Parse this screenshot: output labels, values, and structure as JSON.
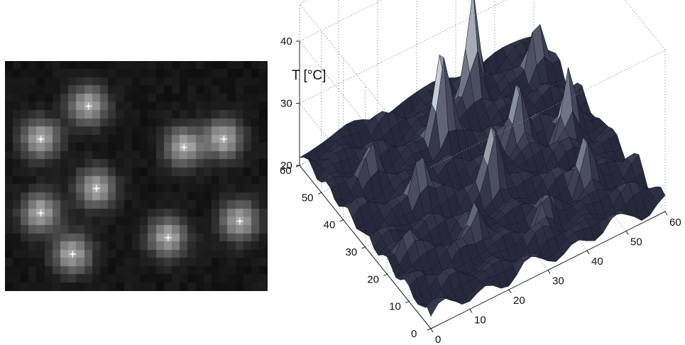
{
  "chart_data": [
    {
      "type": "heatmap",
      "colormap": "grayscale",
      "grid_rows": 28,
      "grid_cols": 33,
      "markers": "white cross",
      "spots": [
        {
          "row": 5,
          "col": 10
        },
        {
          "row": 9,
          "col": 4
        },
        {
          "row": 10,
          "col": 22
        },
        {
          "row": 9,
          "col": 27
        },
        {
          "row": 15,
          "col": 11
        },
        {
          "row": 18,
          "col": 4
        },
        {
          "row": 21,
          "col": 20
        },
        {
          "row": 23,
          "col": 8
        },
        {
          "row": 19,
          "col": 29
        }
      ]
    },
    {
      "type": "surface",
      "zlabel": "T [°C]",
      "xticks": [
        "0",
        "10",
        "20",
        "30",
        "40",
        "50",
        "60"
      ],
      "yticks": [
        "0",
        "10",
        "20",
        "30",
        "40",
        "50",
        "60"
      ],
      "zticks": [
        "20",
        "30",
        "40"
      ],
      "xlim": [
        0,
        60
      ],
      "ylim": [
        0,
        60
      ],
      "zlim": [
        20,
        40
      ],
      "baseline_temperature": 22,
      "grid": true,
      "colors": {
        "low": "#202235",
        "high": "#d8e6ee"
      },
      "peaks": [
        {
          "x": 15,
          "y": 32,
          "t": 30
        },
        {
          "x": 28,
          "y": 45,
          "t": 38
        },
        {
          "x": 40,
          "y": 52,
          "t": 40
        },
        {
          "x": 52,
          "y": 30,
          "t": 33
        },
        {
          "x": 30,
          "y": 25,
          "t": 34
        },
        {
          "x": 42,
          "y": 35,
          "t": 33
        },
        {
          "x": 20,
          "y": 15,
          "t": 29
        },
        {
          "x": 48,
          "y": 15,
          "t": 30
        },
        {
          "x": 10,
          "y": 45,
          "t": 27
        },
        {
          "x": 55,
          "y": 50,
          "t": 31
        },
        {
          "x": 35,
          "y": 10,
          "t": 27
        },
        {
          "x": 5,
          "y": 20,
          "t": 26
        }
      ]
    }
  ]
}
